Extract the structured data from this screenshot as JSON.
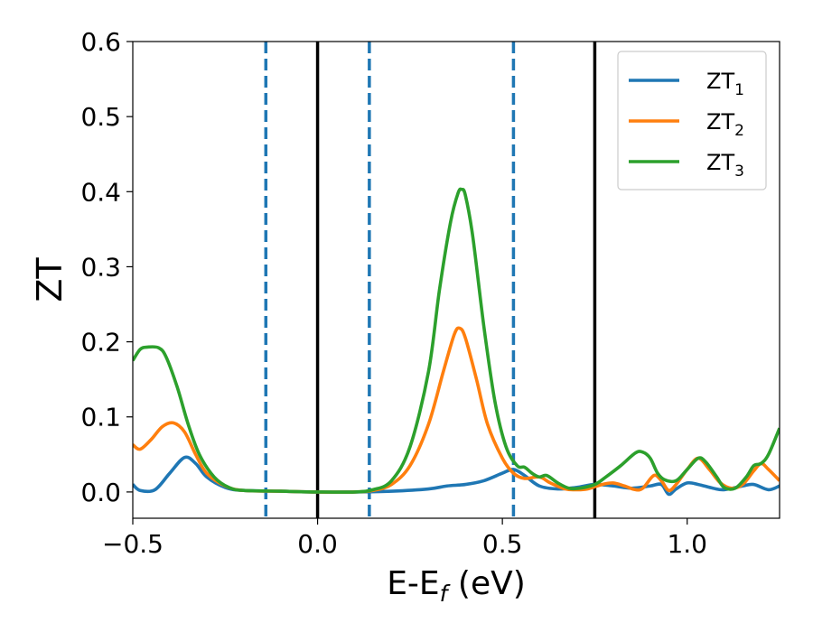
{
  "chart_data": {
    "type": "line",
    "title": "",
    "xlabel": "E-E",
    "xlabel_sub": "f",
    "xlabel_unit": " (eV)",
    "ylabel": "ZT",
    "xlim": [
      -0.5,
      1.25
    ],
    "ylim": [
      -0.035,
      0.6
    ],
    "xticks": [
      -0.5,
      0.0,
      0.5,
      1.0
    ],
    "xtick_labels": [
      "−0.5",
      "0.0",
      "0.5",
      "1.0"
    ],
    "yticks": [
      0.0,
      0.1,
      0.2,
      0.3,
      0.4,
      0.5,
      0.6
    ],
    "ytick_labels": [
      "0.0",
      "0.1",
      "0.2",
      "0.3",
      "0.4",
      "0.5",
      "0.6"
    ],
    "grid": false,
    "legend_position": "top-right",
    "vlines": [
      {
        "x": -0.14,
        "style": "dashed",
        "color": "#1f77b4"
      },
      {
        "x": 0.0,
        "style": "solid",
        "color": "#000000"
      },
      {
        "x": 0.14,
        "style": "dashed",
        "color": "#1f77b4"
      },
      {
        "x": 0.53,
        "style": "dashed",
        "color": "#1f77b4"
      },
      {
        "x": 0.75,
        "style": "solid",
        "color": "#000000"
      }
    ],
    "series": [
      {
        "name": "ZT",
        "name_sub": "1",
        "color": "#1f77b4",
        "points": [
          [
            -0.5,
            0.01
          ],
          [
            -0.48,
            0.002
          ],
          [
            -0.44,
            0.003
          ],
          [
            -0.4,
            0.025
          ],
          [
            -0.36,
            0.046
          ],
          [
            -0.33,
            0.038
          ],
          [
            -0.3,
            0.02
          ],
          [
            -0.25,
            0.006
          ],
          [
            -0.2,
            0.002
          ],
          [
            -0.1,
            0.001
          ],
          [
            0.0,
            0.0
          ],
          [
            0.1,
            0.0
          ],
          [
            0.2,
            0.001
          ],
          [
            0.3,
            0.004
          ],
          [
            0.35,
            0.008
          ],
          [
            0.4,
            0.01
          ],
          [
            0.45,
            0.015
          ],
          [
            0.5,
            0.025
          ],
          [
            0.53,
            0.03
          ],
          [
            0.56,
            0.022
          ],
          [
            0.6,
            0.008
          ],
          [
            0.65,
            0.004
          ],
          [
            0.7,
            0.006
          ],
          [
            0.75,
            0.01
          ],
          [
            0.8,
            0.008
          ],
          [
            0.85,
            0.005
          ],
          [
            0.9,
            0.008
          ],
          [
            0.93,
            0.01
          ],
          [
            0.95,
            -0.003
          ],
          [
            0.97,
            0.004
          ],
          [
            1.0,
            0.012
          ],
          [
            1.03,
            0.01
          ],
          [
            1.07,
            0.005
          ],
          [
            1.1,
            0.003
          ],
          [
            1.15,
            0.008
          ],
          [
            1.18,
            0.01
          ],
          [
            1.22,
            0.003
          ],
          [
            1.25,
            0.008
          ]
        ]
      },
      {
        "name": "ZT",
        "name_sub": "2",
        "color": "#ff7f0e",
        "points": [
          [
            -0.5,
            0.063
          ],
          [
            -0.48,
            0.057
          ],
          [
            -0.45,
            0.07
          ],
          [
            -0.42,
            0.087
          ],
          [
            -0.39,
            0.092
          ],
          [
            -0.36,
            0.08
          ],
          [
            -0.33,
            0.05
          ],
          [
            -0.3,
            0.025
          ],
          [
            -0.25,
            0.008
          ],
          [
            -0.2,
            0.002
          ],
          [
            -0.1,
            0.001
          ],
          [
            0.0,
            0.0
          ],
          [
            0.1,
            0.0
          ],
          [
            0.15,
            0.002
          ],
          [
            0.2,
            0.01
          ],
          [
            0.25,
            0.035
          ],
          [
            0.3,
            0.09
          ],
          [
            0.34,
            0.16
          ],
          [
            0.37,
            0.21
          ],
          [
            0.385,
            0.218
          ],
          [
            0.4,
            0.205
          ],
          [
            0.43,
            0.15
          ],
          [
            0.46,
            0.09
          ],
          [
            0.5,
            0.045
          ],
          [
            0.53,
            0.025
          ],
          [
            0.56,
            0.018
          ],
          [
            0.6,
            0.02
          ],
          [
            0.63,
            0.012
          ],
          [
            0.67,
            0.004
          ],
          [
            0.7,
            0.003
          ],
          [
            0.73,
            0.004
          ],
          [
            0.77,
            0.01
          ],
          [
            0.8,
            0.012
          ],
          [
            0.83,
            0.008
          ],
          [
            0.86,
            0.003
          ],
          [
            0.88,
            0.005
          ],
          [
            0.91,
            0.022
          ],
          [
            0.93,
            0.015
          ],
          [
            0.95,
            0.002
          ],
          [
            0.97,
            0.01
          ],
          [
            1.0,
            0.03
          ],
          [
            1.03,
            0.045
          ],
          [
            1.06,
            0.03
          ],
          [
            1.09,
            0.012
          ],
          [
            1.12,
            0.005
          ],
          [
            1.15,
            0.01
          ],
          [
            1.18,
            0.028
          ],
          [
            1.2,
            0.038
          ],
          [
            1.22,
            0.03
          ],
          [
            1.25,
            0.015
          ]
        ]
      },
      {
        "name": "ZT",
        "name_sub": "3",
        "color": "#2ca02c",
        "points": [
          [
            -0.5,
            0.175
          ],
          [
            -0.48,
            0.19
          ],
          [
            -0.46,
            0.193
          ],
          [
            -0.43,
            0.192
          ],
          [
            -0.41,
            0.18
          ],
          [
            -0.38,
            0.14
          ],
          [
            -0.35,
            0.09
          ],
          [
            -0.32,
            0.05
          ],
          [
            -0.28,
            0.02
          ],
          [
            -0.24,
            0.006
          ],
          [
            -0.2,
            0.002
          ],
          [
            -0.1,
            0.001
          ],
          [
            0.0,
            0.0
          ],
          [
            0.1,
            0.0
          ],
          [
            0.15,
            0.003
          ],
          [
            0.2,
            0.015
          ],
          [
            0.25,
            0.06
          ],
          [
            0.3,
            0.16
          ],
          [
            0.33,
            0.27
          ],
          [
            0.36,
            0.36
          ],
          [
            0.38,
            0.398
          ],
          [
            0.39,
            0.403
          ],
          [
            0.4,
            0.395
          ],
          [
            0.42,
            0.34
          ],
          [
            0.45,
            0.22
          ],
          [
            0.48,
            0.12
          ],
          [
            0.51,
            0.06
          ],
          [
            0.54,
            0.035
          ],
          [
            0.56,
            0.033
          ],
          [
            0.58,
            0.025
          ],
          [
            0.6,
            0.02
          ],
          [
            0.62,
            0.022
          ],
          [
            0.65,
            0.012
          ],
          [
            0.68,
            0.005
          ],
          [
            0.71,
            0.005
          ],
          [
            0.75,
            0.01
          ],
          [
            0.78,
            0.02
          ],
          [
            0.82,
            0.035
          ],
          [
            0.86,
            0.052
          ],
          [
            0.88,
            0.053
          ],
          [
            0.9,
            0.045
          ],
          [
            0.92,
            0.025
          ],
          [
            0.94,
            0.016
          ],
          [
            0.97,
            0.015
          ],
          [
            1.0,
            0.03
          ],
          [
            1.03,
            0.045
          ],
          [
            1.05,
            0.04
          ],
          [
            1.08,
            0.02
          ],
          [
            1.1,
            0.006
          ],
          [
            1.13,
            0.005
          ],
          [
            1.16,
            0.02
          ],
          [
            1.18,
            0.035
          ],
          [
            1.2,
            0.038
          ],
          [
            1.22,
            0.05
          ],
          [
            1.25,
            0.085
          ]
        ]
      }
    ]
  }
}
